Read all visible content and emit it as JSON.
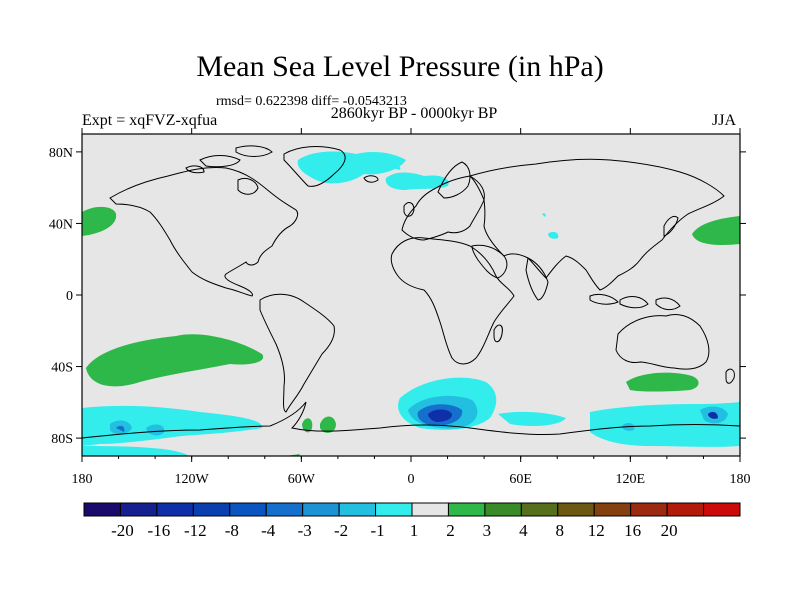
{
  "title": "Mean Sea Level Pressure (in hPa)",
  "stats": "rmsd= 0.622398 diff= -0.0543213",
  "period": "2860kyr BP - 0000kyr BP",
  "expt": "Expt = xqFVZ-xqfua",
  "season": "JJA",
  "lat_ticks": [
    "80N",
    "40N",
    "0",
    "40S",
    "80S"
  ],
  "lat_values": [
    80,
    40,
    0,
    -40,
    -80
  ],
  "lon_ticks": [
    "180",
    "120W",
    "60W",
    "0",
    "60E",
    "120E",
    "180"
  ],
  "lon_values": [
    -180,
    -120,
    -60,
    0,
    60,
    120,
    180
  ],
  "lon_range": [
    -180,
    180
  ],
  "lat_range": [
    -90,
    90
  ],
  "colorbar": {
    "labels": [
      "-20",
      "-16",
      "-12",
      "-8",
      "-4",
      "-3",
      "-2",
      "-1",
      "1",
      "2",
      "3",
      "4",
      "8",
      "12",
      "16",
      "20"
    ],
    "colors": [
      "#1a0a6b",
      "#16208e",
      "#0f2fa8",
      "#0a3fb0",
      "#0b55c0",
      "#1470cc",
      "#1c93d4",
      "#22bfe0",
      "#33ecec",
      "#e6e6e6",
      "#2eb84a",
      "#3a8a2a",
      "#556f1c",
      "#6c5812",
      "#854010",
      "#9c2a10",
      "#b21a0a",
      "#cc0a0a"
    ]
  },
  "fill_colors": {
    "background": "#e6e6e6",
    "green": "#2eb84a",
    "cyan": "#33ecec",
    "light_blue": "#22bfe0",
    "mid_blue": "#1470cc",
    "dark_blue": "#0f2fa8"
  }
}
